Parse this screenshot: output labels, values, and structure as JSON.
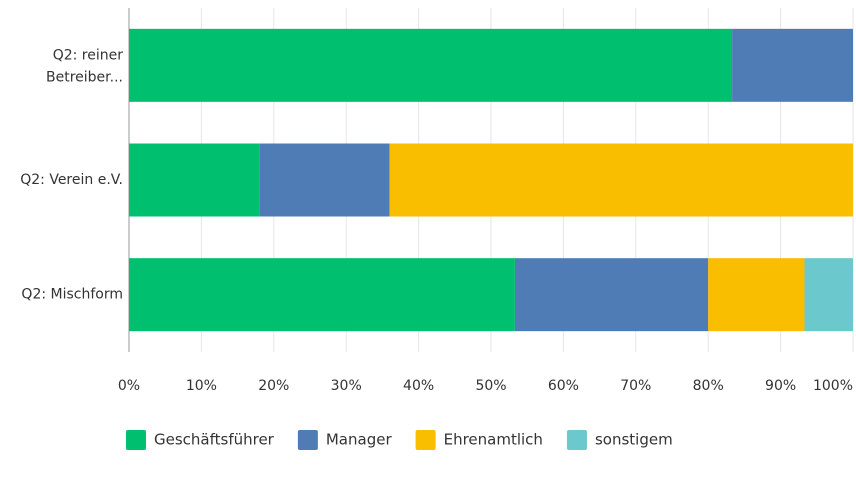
{
  "chart_data": {
    "type": "stacked_bar_horizontal",
    "categories": [
      "Q2: reiner Betreiber...",
      "Q2: Verein e.V.",
      "Q2: Mischform"
    ],
    "series": [
      {
        "name": "Geschäftsführer",
        "color": "#00bf6f",
        "values": [
          83.3,
          18,
          53.3
        ]
      },
      {
        "name": "Manager",
        "color": "#507cb6",
        "values": [
          16.7,
          18,
          26.7
        ]
      },
      {
        "name": "Ehrenamtlich",
        "color": "#f9be00",
        "values": [
          0,
          64,
          13.3
        ]
      },
      {
        "name": "sonstigem",
        "color": "#6bc8cd",
        "values": [
          0,
          0,
          6.7
        ]
      }
    ],
    "xlim": [
      0,
      100
    ],
    "xticks": [
      {
        "value": 0,
        "label": "0%"
      },
      {
        "value": 10,
        "label": "10%"
      },
      {
        "value": 20,
        "label": "20%"
      },
      {
        "value": 30,
        "label": "30%"
      },
      {
        "value": 40,
        "label": "40%"
      },
      {
        "value": 50,
        "label": "50%"
      },
      {
        "value": 60,
        "label": "60%"
      },
      {
        "value": 70,
        "label": "70%"
      },
      {
        "value": 80,
        "label": "80%"
      },
      {
        "value": 90,
        "label": "90%"
      },
      {
        "value": 100,
        "label": "100%"
      }
    ],
    "grid": true,
    "legend": "bottom"
  }
}
